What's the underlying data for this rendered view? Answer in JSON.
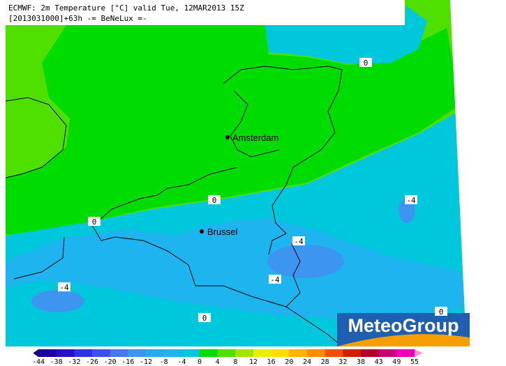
{
  "header": {
    "line1": "ECMWF: 2m Temperature [°C] valid Tue, 12MAR2013 15Z",
    "line2": "[2013031000]+63h  -= BeNeLux =-"
  },
  "cities": [
    "Amsterdam",
    "Brussel"
  ],
  "contour_labels": [
    0,
    0,
    0,
    0,
    0,
    -4,
    -4,
    -4,
    -4
  ],
  "legend": {
    "ticks": [
      -44,
      -38,
      -32,
      -26,
      -20,
      -16,
      -12,
      -8,
      -4,
      0,
      4,
      8,
      12,
      16,
      20,
      24,
      28,
      32,
      38,
      43,
      49,
      55
    ],
    "colors": [
      "#14006e",
      "#1e00a0",
      "#2810c8",
      "#3030e6",
      "#3c50f0",
      "#4678f0",
      "#3c96f0",
      "#28aaf0",
      "#1eb4f0",
      "#00c8dc",
      "#00dc00",
      "#50e000",
      "#a0e600",
      "#e6f000",
      "#ffdc00",
      "#ffb400",
      "#ff8c00",
      "#f05000",
      "#d21e00",
      "#b40028",
      "#c80078",
      "#f000b4",
      "#ff8cdc"
    ]
  },
  "logo": "MeteoGroup"
}
